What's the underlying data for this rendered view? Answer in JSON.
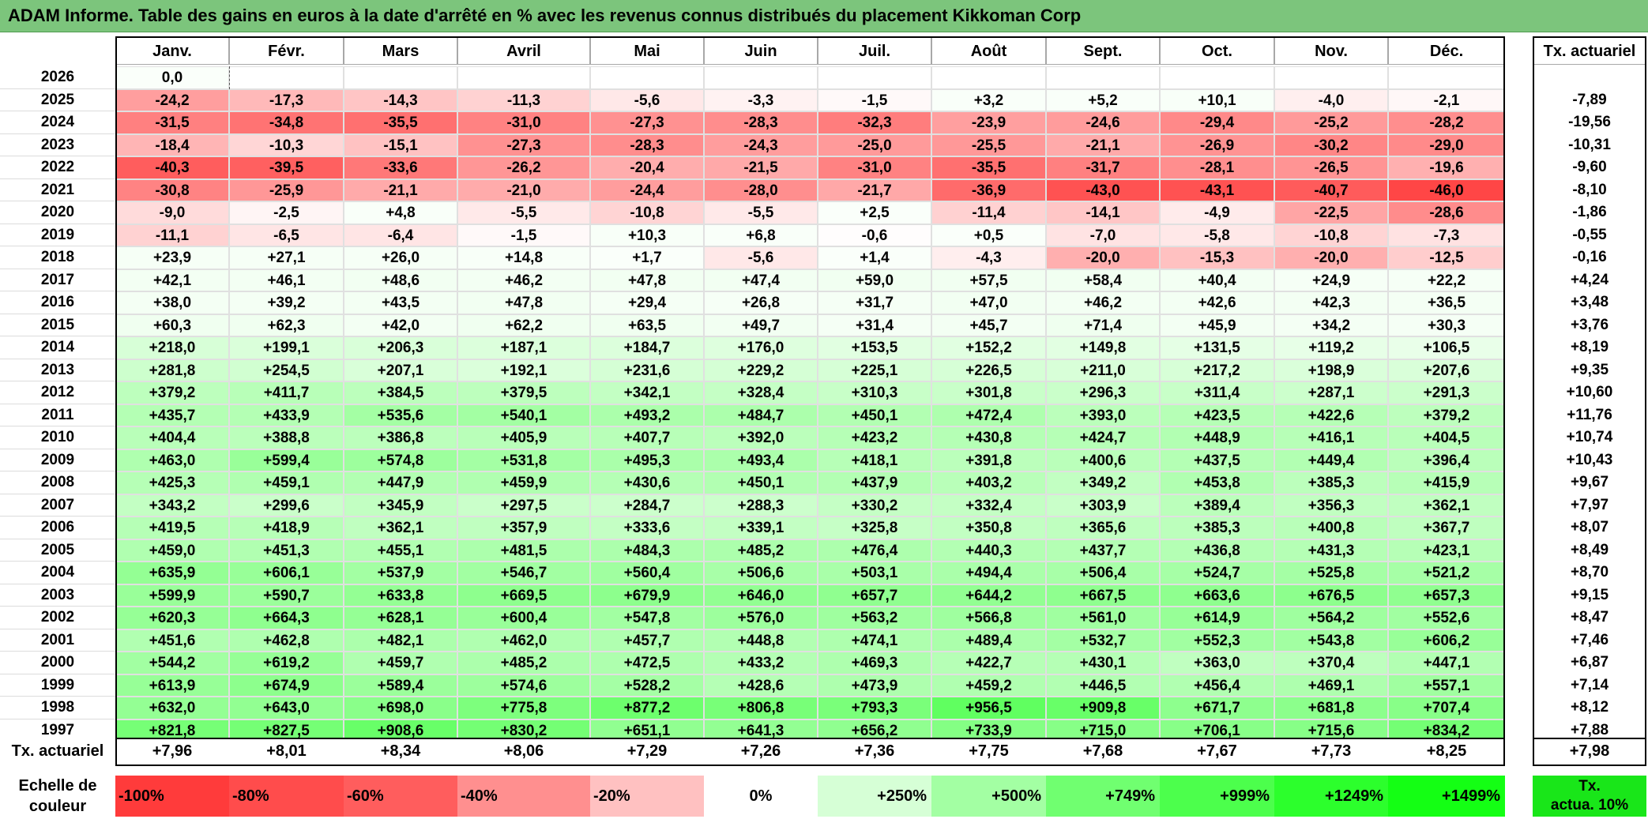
{
  "title": "ADAM Informe. Table des gains en euros à la date d'arrêté en % avec les revenus connus distribués du placement Kikkoman Corp",
  "chart_data": {
    "type": "table",
    "columns": [
      "Janv.",
      "Févr.",
      "Mars",
      "Avril",
      "Mai",
      "Juin",
      "Juil.",
      "Août",
      "Sept.",
      "Oct.",
      "Nov.",
      "Déc."
    ],
    "rate_header": "Tx. actuariel",
    "rows": [
      {
        "year": "2026",
        "values": [
          "0,0",
          "",
          "",
          "",
          "",
          "",
          "",
          "",
          "",
          "",
          "",
          ""
        ],
        "rate": ""
      },
      {
        "year": "2025",
        "values": [
          "-24,2",
          "-17,3",
          "-14,3",
          "-11,3",
          "-5,6",
          "-3,3",
          "-1,5",
          "+3,2",
          "+5,2",
          "+10,1",
          "-4,0",
          "-2,1"
        ],
        "rate": "-7,89"
      },
      {
        "year": "2024",
        "values": [
          "-31,5",
          "-34,8",
          "-35,5",
          "-31,0",
          "-27,3",
          "-28,3",
          "-32,3",
          "-23,9",
          "-24,6",
          "-29,4",
          "-25,2",
          "-28,2"
        ],
        "rate": "-19,56"
      },
      {
        "year": "2023",
        "values": [
          "-18,4",
          "-10,3",
          "-15,1",
          "-27,3",
          "-28,3",
          "-24,3",
          "-25,0",
          "-25,5",
          "-21,1",
          "-26,9",
          "-30,2",
          "-29,0"
        ],
        "rate": "-10,31"
      },
      {
        "year": "2022",
        "values": [
          "-40,3",
          "-39,5",
          "-33,6",
          "-26,2",
          "-20,4",
          "-21,5",
          "-31,0",
          "-35,5",
          "-31,7",
          "-28,1",
          "-26,5",
          "-19,6"
        ],
        "rate": "-9,60"
      },
      {
        "year": "2021",
        "values": [
          "-30,8",
          "-25,9",
          "-21,1",
          "-21,0",
          "-24,4",
          "-28,0",
          "-21,7",
          "-36,9",
          "-43,0",
          "-43,1",
          "-40,7",
          "-46,0"
        ],
        "rate": "-8,10"
      },
      {
        "year": "2020",
        "values": [
          "-9,0",
          "-2,5",
          "+4,8",
          "-5,5",
          "-10,8",
          "-5,5",
          "+2,5",
          "-11,4",
          "-14,1",
          "-4,9",
          "-22,5",
          "-28,6"
        ],
        "rate": "-1,86"
      },
      {
        "year": "2019",
        "values": [
          "-11,1",
          "-6,5",
          "-6,4",
          "-1,5",
          "+10,3",
          "+6,8",
          "-0,6",
          "+0,5",
          "-7,0",
          "-5,8",
          "-10,8",
          "-7,3"
        ],
        "rate": "-0,55"
      },
      {
        "year": "2018",
        "values": [
          "+23,9",
          "+27,1",
          "+26,0",
          "+14,8",
          "+1,7",
          "-5,6",
          "+1,4",
          "-4,3",
          "-20,0",
          "-15,3",
          "-20,0",
          "-12,5"
        ],
        "rate": "-0,16"
      },
      {
        "year": "2017",
        "values": [
          "+42,1",
          "+46,1",
          "+48,6",
          "+46,2",
          "+47,8",
          "+47,4",
          "+59,0",
          "+57,5",
          "+58,4",
          "+40,4",
          "+24,9",
          "+22,2"
        ],
        "rate": "+4,24"
      },
      {
        "year": "2016",
        "values": [
          "+38,0",
          "+39,2",
          "+43,5",
          "+47,8",
          "+29,4",
          "+26,8",
          "+31,7",
          "+47,0",
          "+46,2",
          "+42,6",
          "+42,3",
          "+36,5"
        ],
        "rate": "+3,48"
      },
      {
        "year": "2015",
        "values": [
          "+60,3",
          "+62,3",
          "+42,0",
          "+62,2",
          "+63,5",
          "+49,7",
          "+31,4",
          "+45,7",
          "+71,4",
          "+45,9",
          "+34,2",
          "+30,3"
        ],
        "rate": "+3,76"
      },
      {
        "year": "2014",
        "values": [
          "+218,0",
          "+199,1",
          "+206,3",
          "+187,1",
          "+184,7",
          "+176,0",
          "+153,5",
          "+152,2",
          "+149,8",
          "+131,5",
          "+119,2",
          "+106,5"
        ],
        "rate": "+8,19"
      },
      {
        "year": "2013",
        "values": [
          "+281,8",
          "+254,5",
          "+207,1",
          "+192,1",
          "+231,6",
          "+229,2",
          "+225,1",
          "+226,5",
          "+211,0",
          "+217,2",
          "+198,9",
          "+207,6"
        ],
        "rate": "+9,35"
      },
      {
        "year": "2012",
        "values": [
          "+379,2",
          "+411,7",
          "+384,5",
          "+379,5",
          "+342,1",
          "+328,4",
          "+310,3",
          "+301,8",
          "+296,3",
          "+311,4",
          "+287,1",
          "+291,3"
        ],
        "rate": "+10,60"
      },
      {
        "year": "2011",
        "values": [
          "+435,7",
          "+433,9",
          "+535,6",
          "+540,1",
          "+493,2",
          "+484,7",
          "+450,1",
          "+472,4",
          "+393,0",
          "+423,5",
          "+422,6",
          "+379,2"
        ],
        "rate": "+11,76"
      },
      {
        "year": "2010",
        "values": [
          "+404,4",
          "+388,8",
          "+386,8",
          "+405,9",
          "+407,7",
          "+392,0",
          "+423,2",
          "+430,8",
          "+424,7",
          "+448,9",
          "+416,1",
          "+404,5"
        ],
        "rate": "+10,74"
      },
      {
        "year": "2009",
        "values": [
          "+463,0",
          "+599,4",
          "+574,8",
          "+531,8",
          "+495,3",
          "+493,4",
          "+418,1",
          "+391,8",
          "+400,6",
          "+437,5",
          "+449,4",
          "+396,4"
        ],
        "rate": "+10,43"
      },
      {
        "year": "2008",
        "values": [
          "+425,3",
          "+459,1",
          "+447,9",
          "+459,9",
          "+430,6",
          "+450,1",
          "+437,9",
          "+403,2",
          "+349,2",
          "+453,8",
          "+385,3",
          "+415,9"
        ],
        "rate": "+9,67"
      },
      {
        "year": "2007",
        "values": [
          "+343,2",
          "+299,6",
          "+345,9",
          "+297,5",
          "+284,7",
          "+288,3",
          "+330,2",
          "+332,4",
          "+303,9",
          "+389,4",
          "+356,3",
          "+362,1"
        ],
        "rate": "+7,97"
      },
      {
        "year": "2006",
        "values": [
          "+419,5",
          "+418,9",
          "+362,1",
          "+357,9",
          "+333,6",
          "+339,1",
          "+325,8",
          "+350,8",
          "+365,6",
          "+385,3",
          "+400,8",
          "+367,7"
        ],
        "rate": "+8,07"
      },
      {
        "year": "2005",
        "values": [
          "+459,0",
          "+451,3",
          "+455,1",
          "+481,5",
          "+484,3",
          "+485,2",
          "+476,4",
          "+440,3",
          "+437,7",
          "+436,8",
          "+431,3",
          "+423,1"
        ],
        "rate": "+8,49"
      },
      {
        "year": "2004",
        "values": [
          "+635,9",
          "+606,1",
          "+537,9",
          "+546,7",
          "+560,4",
          "+506,6",
          "+503,1",
          "+494,4",
          "+506,4",
          "+524,7",
          "+525,8",
          "+521,2"
        ],
        "rate": "+8,70"
      },
      {
        "year": "2003",
        "values": [
          "+599,9",
          "+590,7",
          "+633,8",
          "+669,5",
          "+679,9",
          "+646,0",
          "+657,7",
          "+644,2",
          "+667,5",
          "+663,6",
          "+676,5",
          "+657,3"
        ],
        "rate": "+9,15"
      },
      {
        "year": "2002",
        "values": [
          "+620,3",
          "+664,3",
          "+628,1",
          "+600,4",
          "+547,8",
          "+576,0",
          "+563,2",
          "+566,8",
          "+561,0",
          "+614,9",
          "+564,2",
          "+552,6"
        ],
        "rate": "+8,47"
      },
      {
        "year": "2001",
        "values": [
          "+451,6",
          "+462,8",
          "+482,1",
          "+462,0",
          "+457,7",
          "+448,8",
          "+474,1",
          "+489,4",
          "+532,7",
          "+552,3",
          "+543,8",
          "+606,2"
        ],
        "rate": "+7,46"
      },
      {
        "year": "2000",
        "values": [
          "+544,2",
          "+619,2",
          "+459,7",
          "+485,2",
          "+472,5",
          "+433,2",
          "+469,3",
          "+422,7",
          "+430,1",
          "+363,0",
          "+370,4",
          "+447,1"
        ],
        "rate": "+6,87"
      },
      {
        "year": "1999",
        "values": [
          "+613,9",
          "+674,9",
          "+589,4",
          "+574,6",
          "+528,2",
          "+428,6",
          "+473,9",
          "+459,2",
          "+446,5",
          "+456,4",
          "+469,1",
          "+557,1"
        ],
        "rate": "+7,14"
      },
      {
        "year": "1998",
        "values": [
          "+632,0",
          "+643,0",
          "+698,0",
          "+775,8",
          "+877,2",
          "+806,8",
          "+793,3",
          "+956,5",
          "+909,8",
          "+671,7",
          "+681,8",
          "+707,4"
        ],
        "rate": "+8,12"
      },
      {
        "year": "1997",
        "values": [
          "+821,8",
          "+827,5",
          "+908,6",
          "+830,2",
          "+651,1",
          "+641,3",
          "+656,2",
          "+733,9",
          "+715,0",
          "+706,1",
          "+715,6",
          "+834,2"
        ],
        "rate": "+7,88"
      }
    ],
    "footer": {
      "label": "Tx. actuariel",
      "values": [
        "+7,96",
        "+8,01",
        "+8,34",
        "+8,06",
        "+7,29",
        "+7,26",
        "+7,36",
        "+7,75",
        "+7,68",
        "+7,67",
        "+7,73",
        "+8,25"
      ],
      "total": "+7,98"
    },
    "legend": {
      "label_line1": "Echelle de",
      "label_line2": "couleur",
      "steps": [
        {
          "label": "-100%",
          "color": "#ff3b3b",
          "align": "left"
        },
        {
          "label": "-80%",
          "color": "#ff4c4c",
          "align": "left"
        },
        {
          "label": "-60%",
          "color": "#ff5d5d",
          "align": "left"
        },
        {
          "label": "-40%",
          "color": "#ff8f8f",
          "align": "left"
        },
        {
          "label": "-20%",
          "color": "#ffc1c1",
          "align": "left"
        },
        {
          "label": "0%",
          "color": "#ffffff",
          "align": "center"
        },
        {
          "label": "+250%",
          "color": "#d6ffd6",
          "align": "right"
        },
        {
          "label": "+500%",
          "color": "#a3ffa3",
          "align": "right"
        },
        {
          "label": "+749%",
          "color": "#70ff70",
          "align": "right"
        },
        {
          "label": "+999%",
          "color": "#4cff4c",
          "align": "right"
        },
        {
          "label": "+1249%",
          "color": "#2cff2c",
          "align": "right"
        },
        {
          "label": "+1499%",
          "color": "#14ff14",
          "align": "right"
        }
      ],
      "rate_line1": "Tx.",
      "rate_line2": "actua. 10%",
      "rate_color": "#19e619"
    }
  }
}
